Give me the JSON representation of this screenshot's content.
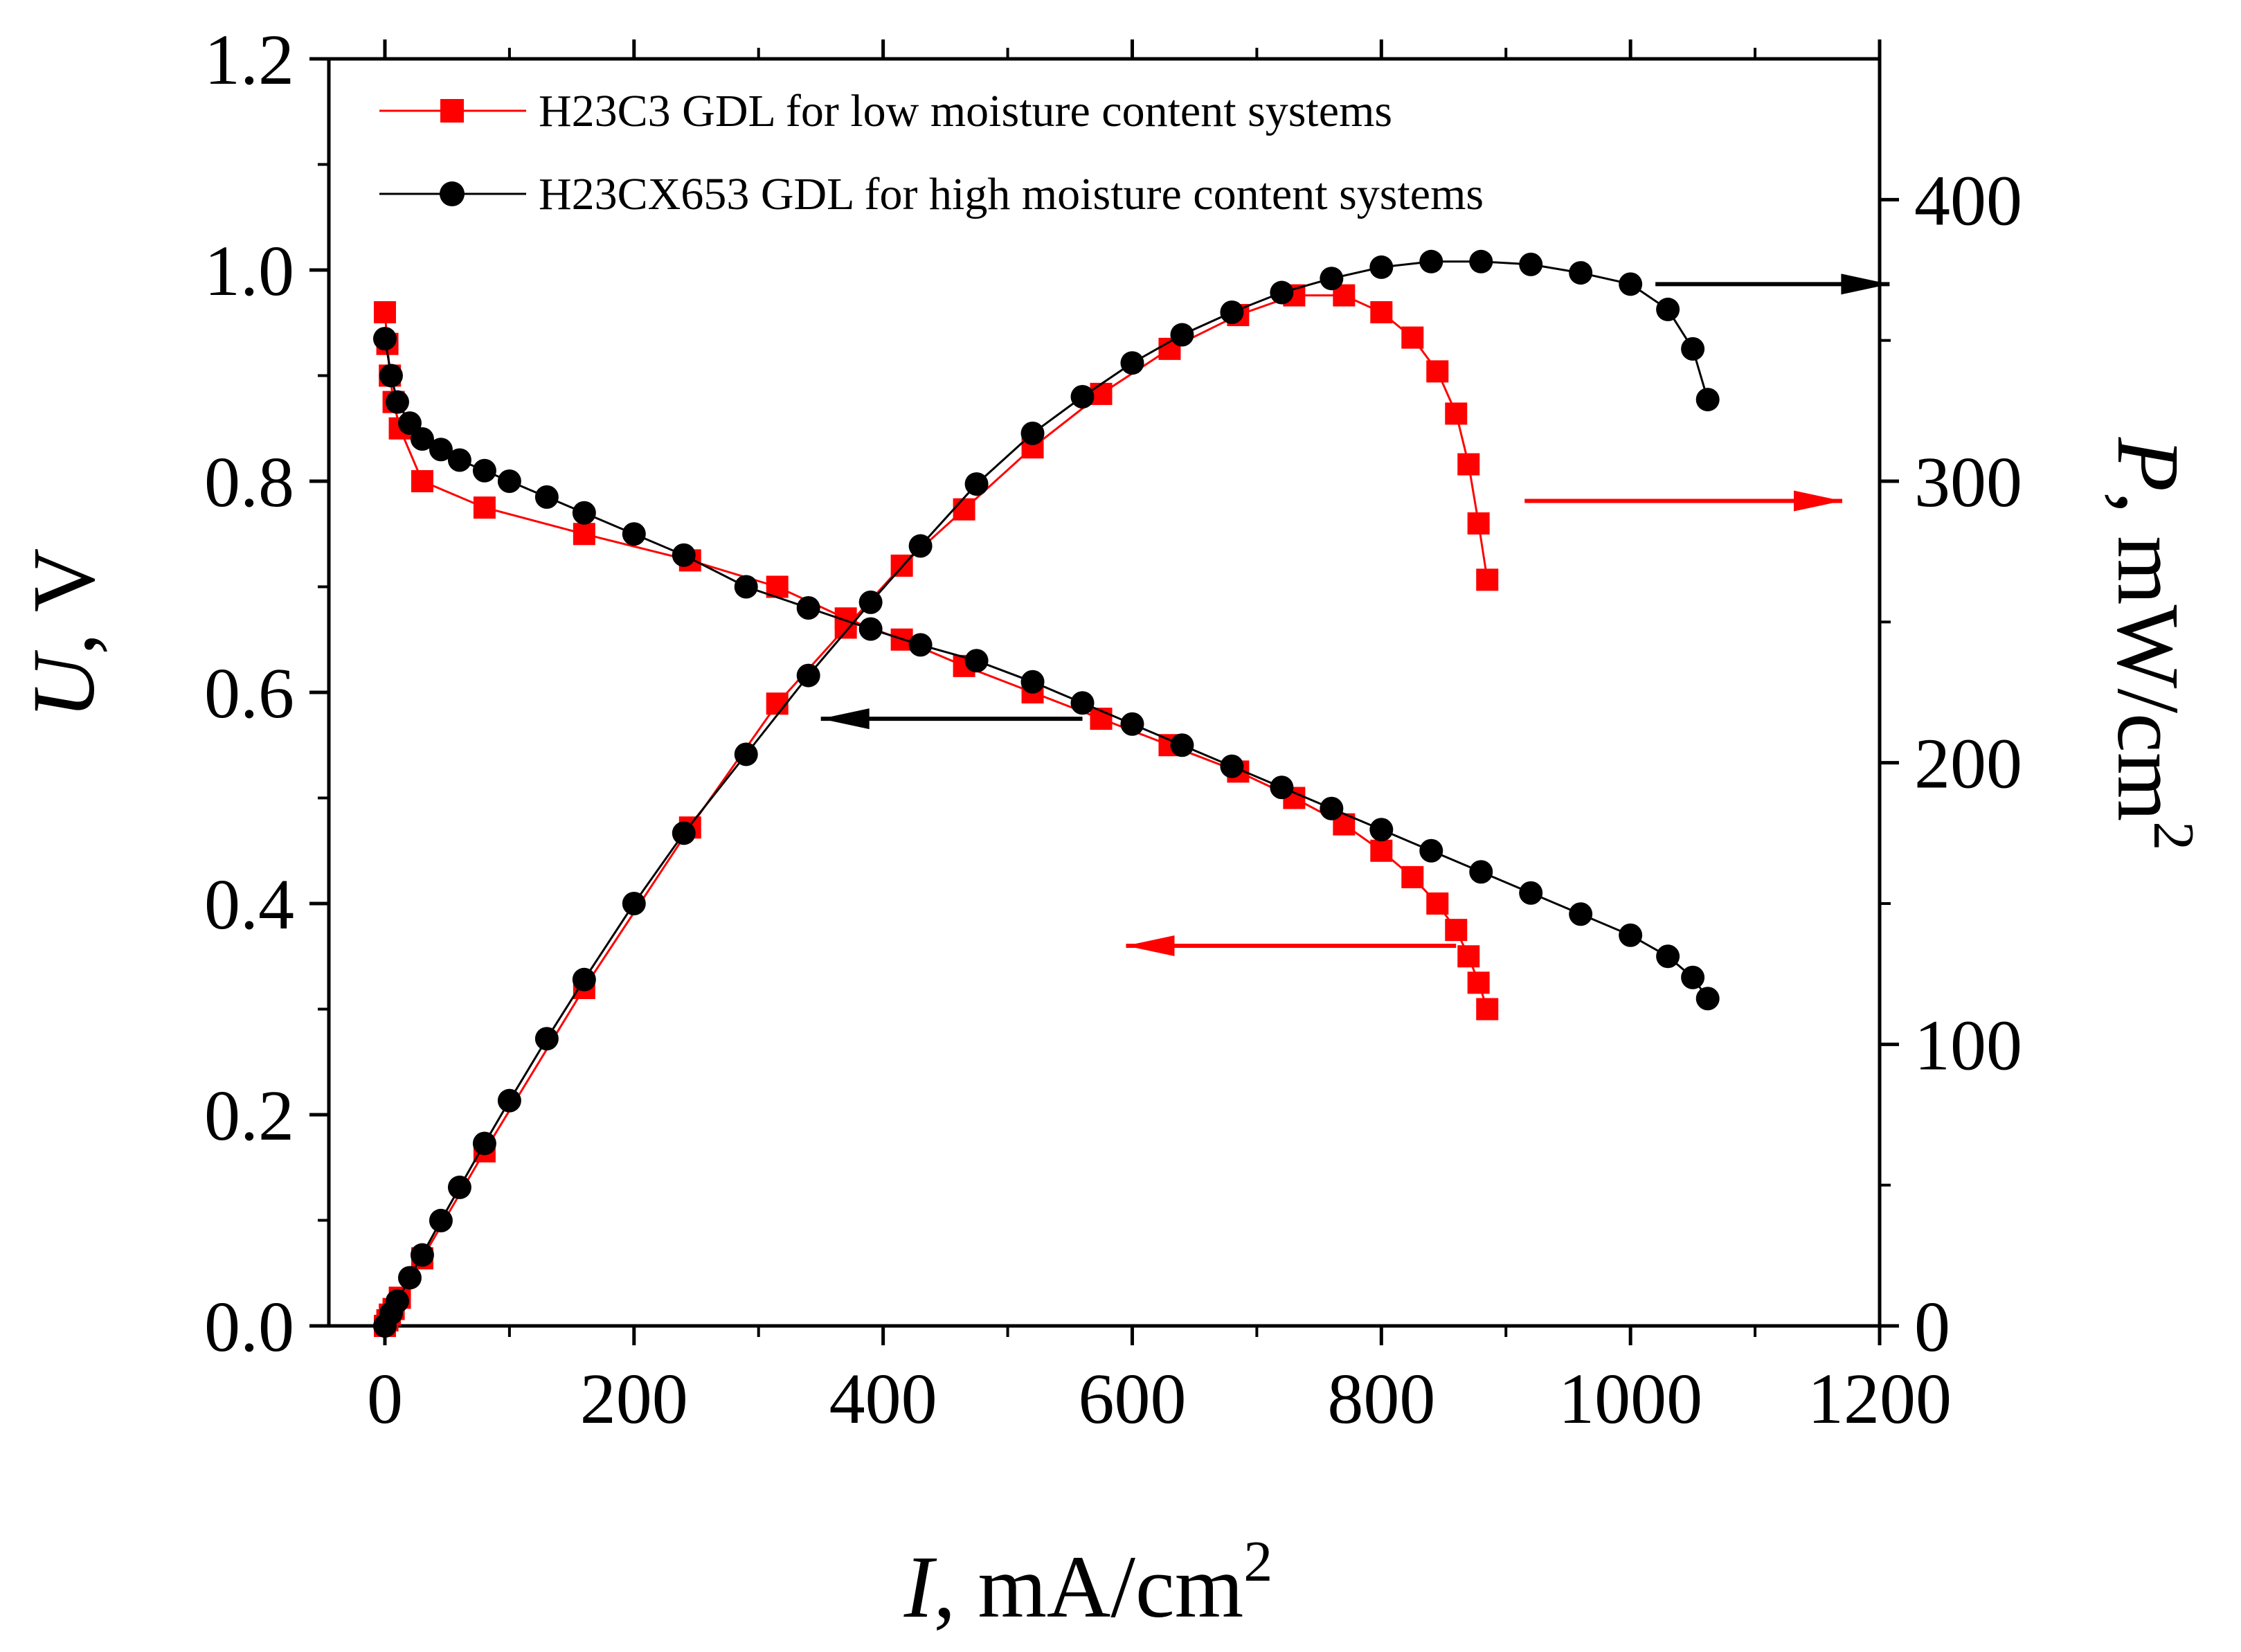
{
  "chart_data": {
    "type": "line",
    "title": "",
    "xlabel": {
      "var": "I",
      "unit": ", mA/cm",
      "sup": "2"
    },
    "ylabel_left": {
      "var": "U",
      "unit": ", V"
    },
    "ylabel_right": {
      "var": "P",
      "unit": ", mW/cm",
      "sup": "2"
    },
    "xlim": [
      -45,
      1200
    ],
    "ylim_left": [
      0,
      1.2
    ],
    "ylim_right": [
      0,
      450
    ],
    "x_ticks": [
      "0",
      "200",
      "400",
      "600",
      "800",
      "1000",
      "1200"
    ],
    "y_left_ticks": [
      "0.0",
      "0.2",
      "0.4",
      "0.6",
      "0.8",
      "1.0",
      "1.2"
    ],
    "y_right_ticks": [
      "0",
      "100",
      "200",
      "300",
      "400"
    ],
    "grid": false,
    "legend_position": "top-left",
    "series": [
      {
        "name": "H23C3 GDL for low moisture content systems",
        "color": "#ff0000",
        "marker": "square",
        "axis_voltage": "left",
        "axis_power": "right",
        "current": [
          0,
          2,
          4,
          7,
          12,
          30,
          80,
          160,
          245,
          315,
          370,
          415,
          465,
          520,
          575,
          630,
          685,
          730,
          770,
          800,
          825,
          845,
          860,
          870,
          878,
          885
        ],
        "voltage": [
          0.96,
          0.93,
          0.9,
          0.875,
          0.85,
          0.8,
          0.775,
          0.75,
          0.725,
          0.7,
          0.67,
          0.65,
          0.625,
          0.6,
          0.575,
          0.55,
          0.525,
          0.5,
          0.475,
          0.45,
          0.425,
          0.4,
          0.375,
          0.35,
          0.325,
          0.3
        ],
        "power": [
          0,
          2,
          4,
          6,
          10,
          24,
          62,
          120,
          177,
          221,
          248,
          270,
          290,
          312,
          331,
          347,
          359,
          366,
          366,
          360,
          351,
          339,
          324,
          306,
          285,
          265
        ]
      },
      {
        "name": "H23CX653 GDL for high moisture content systems",
        "color": "#000000",
        "marker": "circle",
        "axis_voltage": "left",
        "axis_power": "right",
        "current": [
          0,
          5,
          10,
          20,
          30,
          45,
          60,
          80,
          100,
          130,
          160,
          200,
          240,
          290,
          340,
          390,
          430,
          475,
          520,
          560,
          600,
          640,
          680,
          720,
          760,
          800,
          840,
          880,
          920,
          960,
          1000,
          1030,
          1050,
          1062
        ],
        "voltage": [
          0.935,
          0.9,
          0.875,
          0.855,
          0.84,
          0.83,
          0.82,
          0.81,
          0.8,
          0.785,
          0.77,
          0.75,
          0.73,
          0.7,
          0.68,
          0.66,
          0.645,
          0.63,
          0.61,
          0.59,
          0.57,
          0.55,
          0.53,
          0.51,
          0.49,
          0.47,
          0.45,
          0.43,
          0.41,
          0.39,
          0.37,
          0.35,
          0.33,
          0.31
        ],
        "power": [
          0,
          4.5,
          8.8,
          17.1,
          25.2,
          37.4,
          49.2,
          64.8,
          80.0,
          102,
          123,
          150,
          175,
          203,
          231,
          257,
          277,
          299,
          317,
          330,
          342,
          352,
          360,
          367,
          372,
          376,
          378,
          378,
          377,
          374,
          370,
          361,
          347,
          329
        ]
      }
    ]
  }
}
